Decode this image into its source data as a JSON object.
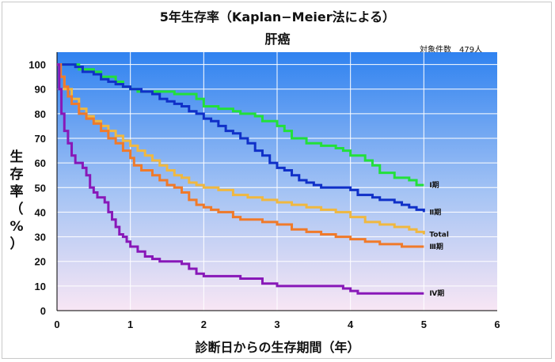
{
  "chart_data": {
    "type": "line",
    "title": "5年生存率（Kaplan−Meier法による）",
    "subtitle": "肝癌",
    "note": "対象件数　479人",
    "xlabel": "診断日からの生存期間（年）",
    "ylabel_chars": [
      "生",
      "存",
      "率",
      "（",
      "%",
      "）"
    ],
    "xlim": [
      0,
      6
    ],
    "ylim": [
      0,
      105
    ],
    "x_ticks": [
      "0",
      "1",
      "2",
      "3",
      "4",
      "5",
      "6"
    ],
    "y_ticks": [
      "0",
      "10",
      "20",
      "30",
      "40",
      "50",
      "60",
      "70",
      "80",
      "90",
      "100"
    ],
    "grid": true,
    "series": [
      {
        "name": "Ⅰ期",
        "color": "#22e03a",
        "points": [
          [
            0,
            100
          ],
          [
            0.2,
            100
          ],
          [
            0.3,
            98
          ],
          [
            0.5,
            97
          ],
          [
            0.6,
            95
          ],
          [
            0.8,
            93
          ],
          [
            0.9,
            91
          ],
          [
            1.0,
            90
          ],
          [
            1.1,
            89
          ],
          [
            1.3,
            89
          ],
          [
            1.6,
            88
          ],
          [
            1.9,
            86
          ],
          [
            2.0,
            83
          ],
          [
            2.2,
            82
          ],
          [
            2.4,
            81
          ],
          [
            2.5,
            80
          ],
          [
            2.7,
            79
          ],
          [
            2.8,
            77
          ],
          [
            3.0,
            75
          ],
          [
            3.1,
            73
          ],
          [
            3.2,
            70
          ],
          [
            3.4,
            68
          ],
          [
            3.6,
            67
          ],
          [
            3.8,
            66
          ],
          [
            3.9,
            65
          ],
          [
            4.0,
            63
          ],
          [
            4.2,
            61
          ],
          [
            4.3,
            59
          ],
          [
            4.4,
            56
          ],
          [
            4.6,
            54
          ],
          [
            4.8,
            53
          ],
          [
            4.9,
            51
          ],
          [
            5.0,
            51
          ]
        ]
      },
      {
        "name": "Ⅱ期",
        "color": "#1030c8",
        "points": [
          [
            0,
            100
          ],
          [
            0.15,
            100
          ],
          [
            0.25,
            99
          ],
          [
            0.35,
            97
          ],
          [
            0.5,
            96
          ],
          [
            0.6,
            94
          ],
          [
            0.7,
            93
          ],
          [
            0.8,
            92
          ],
          [
            0.9,
            91
          ],
          [
            1.0,
            90
          ],
          [
            1.15,
            89
          ],
          [
            1.3,
            88
          ],
          [
            1.4,
            86
          ],
          [
            1.5,
            85
          ],
          [
            1.6,
            84
          ],
          [
            1.7,
            83
          ],
          [
            1.8,
            81
          ],
          [
            1.9,
            80
          ],
          [
            2.0,
            78
          ],
          [
            2.1,
            77
          ],
          [
            2.2,
            75
          ],
          [
            2.3,
            73
          ],
          [
            2.4,
            72
          ],
          [
            2.5,
            70
          ],
          [
            2.6,
            68
          ],
          [
            2.7,
            65
          ],
          [
            2.8,
            63
          ],
          [
            2.9,
            60
          ],
          [
            3.0,
            58
          ],
          [
            3.1,
            57
          ],
          [
            3.2,
            55
          ],
          [
            3.3,
            53
          ],
          [
            3.4,
            52
          ],
          [
            3.5,
            51
          ],
          [
            3.6,
            50
          ],
          [
            3.8,
            50
          ],
          [
            4.0,
            49
          ],
          [
            4.1,
            47
          ],
          [
            4.3,
            46
          ],
          [
            4.4,
            45
          ],
          [
            4.6,
            44
          ],
          [
            4.7,
            43
          ],
          [
            4.8,
            42
          ],
          [
            4.9,
            41
          ],
          [
            5.0,
            40
          ]
        ]
      },
      {
        "name": "Total",
        "color": "#f0b840",
        "points": [
          [
            0,
            100
          ],
          [
            0.05,
            95
          ],
          [
            0.1,
            90
          ],
          [
            0.2,
            86
          ],
          [
            0.3,
            82
          ],
          [
            0.4,
            79
          ],
          [
            0.5,
            77
          ],
          [
            0.6,
            75
          ],
          [
            0.7,
            73
          ],
          [
            0.8,
            71
          ],
          [
            0.9,
            69
          ],
          [
            1.0,
            67
          ],
          [
            1.1,
            65
          ],
          [
            1.2,
            63
          ],
          [
            1.3,
            61
          ],
          [
            1.4,
            59
          ],
          [
            1.5,
            57
          ],
          [
            1.6,
            55
          ],
          [
            1.7,
            54
          ],
          [
            1.8,
            52
          ],
          [
            1.9,
            51
          ],
          [
            2.0,
            50
          ],
          [
            2.2,
            49
          ],
          [
            2.4,
            47
          ],
          [
            2.6,
            46
          ],
          [
            2.8,
            45
          ],
          [
            3.0,
            44
          ],
          [
            3.2,
            43
          ],
          [
            3.4,
            42
          ],
          [
            3.6,
            41
          ],
          [
            3.8,
            40
          ],
          [
            4.0,
            38
          ],
          [
            4.2,
            36
          ],
          [
            4.4,
            35
          ],
          [
            4.6,
            34
          ],
          [
            4.8,
            33
          ],
          [
            4.9,
            32
          ],
          [
            5.0,
            31
          ]
        ]
      },
      {
        "name": "Ⅲ期",
        "color": "#f07a2a",
        "points": [
          [
            0,
            100
          ],
          [
            0.05,
            95
          ],
          [
            0.1,
            91
          ],
          [
            0.15,
            87
          ],
          [
            0.2,
            84
          ],
          [
            0.3,
            80
          ],
          [
            0.4,
            78
          ],
          [
            0.5,
            76
          ],
          [
            0.6,
            73
          ],
          [
            0.7,
            70
          ],
          [
            0.8,
            68
          ],
          [
            0.9,
            65
          ],
          [
            1.0,
            62
          ],
          [
            1.05,
            59
          ],
          [
            1.15,
            57
          ],
          [
            1.3,
            55
          ],
          [
            1.4,
            53
          ],
          [
            1.5,
            51
          ],
          [
            1.6,
            50
          ],
          [
            1.7,
            48
          ],
          [
            1.8,
            45
          ],
          [
            1.9,
            43
          ],
          [
            2.0,
            42
          ],
          [
            2.1,
            41
          ],
          [
            2.2,
            40
          ],
          [
            2.4,
            38
          ],
          [
            2.5,
            37
          ],
          [
            2.8,
            36
          ],
          [
            3.0,
            35
          ],
          [
            3.2,
            33
          ],
          [
            3.4,
            32
          ],
          [
            3.6,
            31
          ],
          [
            3.8,
            30
          ],
          [
            4.0,
            29
          ],
          [
            4.2,
            28
          ],
          [
            4.4,
            27
          ],
          [
            4.7,
            26
          ],
          [
            5.0,
            26
          ]
        ]
      },
      {
        "name": "Ⅳ期",
        "color": "#8818b8",
        "points": [
          [
            0,
            100
          ],
          [
            0.03,
            90
          ],
          [
            0.06,
            80
          ],
          [
            0.1,
            73
          ],
          [
            0.15,
            68
          ],
          [
            0.2,
            63
          ],
          [
            0.25,
            60
          ],
          [
            0.35,
            58
          ],
          [
            0.4,
            55
          ],
          [
            0.45,
            50
          ],
          [
            0.5,
            48
          ],
          [
            0.55,
            46
          ],
          [
            0.65,
            44
          ],
          [
            0.7,
            40
          ],
          [
            0.75,
            37
          ],
          [
            0.8,
            34
          ],
          [
            0.85,
            31
          ],
          [
            0.9,
            30
          ],
          [
            0.95,
            28
          ],
          [
            1.0,
            26
          ],
          [
            1.1,
            24
          ],
          [
            1.2,
            22
          ],
          [
            1.3,
            21
          ],
          [
            1.4,
            20
          ],
          [
            1.7,
            19
          ],
          [
            1.8,
            17
          ],
          [
            1.9,
            15
          ],
          [
            2.0,
            14
          ],
          [
            2.2,
            14
          ],
          [
            2.5,
            13
          ],
          [
            2.8,
            11
          ],
          [
            3.0,
            10
          ],
          [
            3.5,
            10
          ],
          [
            3.9,
            9
          ],
          [
            4.0,
            8
          ],
          [
            4.1,
            7
          ],
          [
            4.5,
            7
          ],
          [
            5.0,
            7
          ]
        ]
      }
    ]
  }
}
